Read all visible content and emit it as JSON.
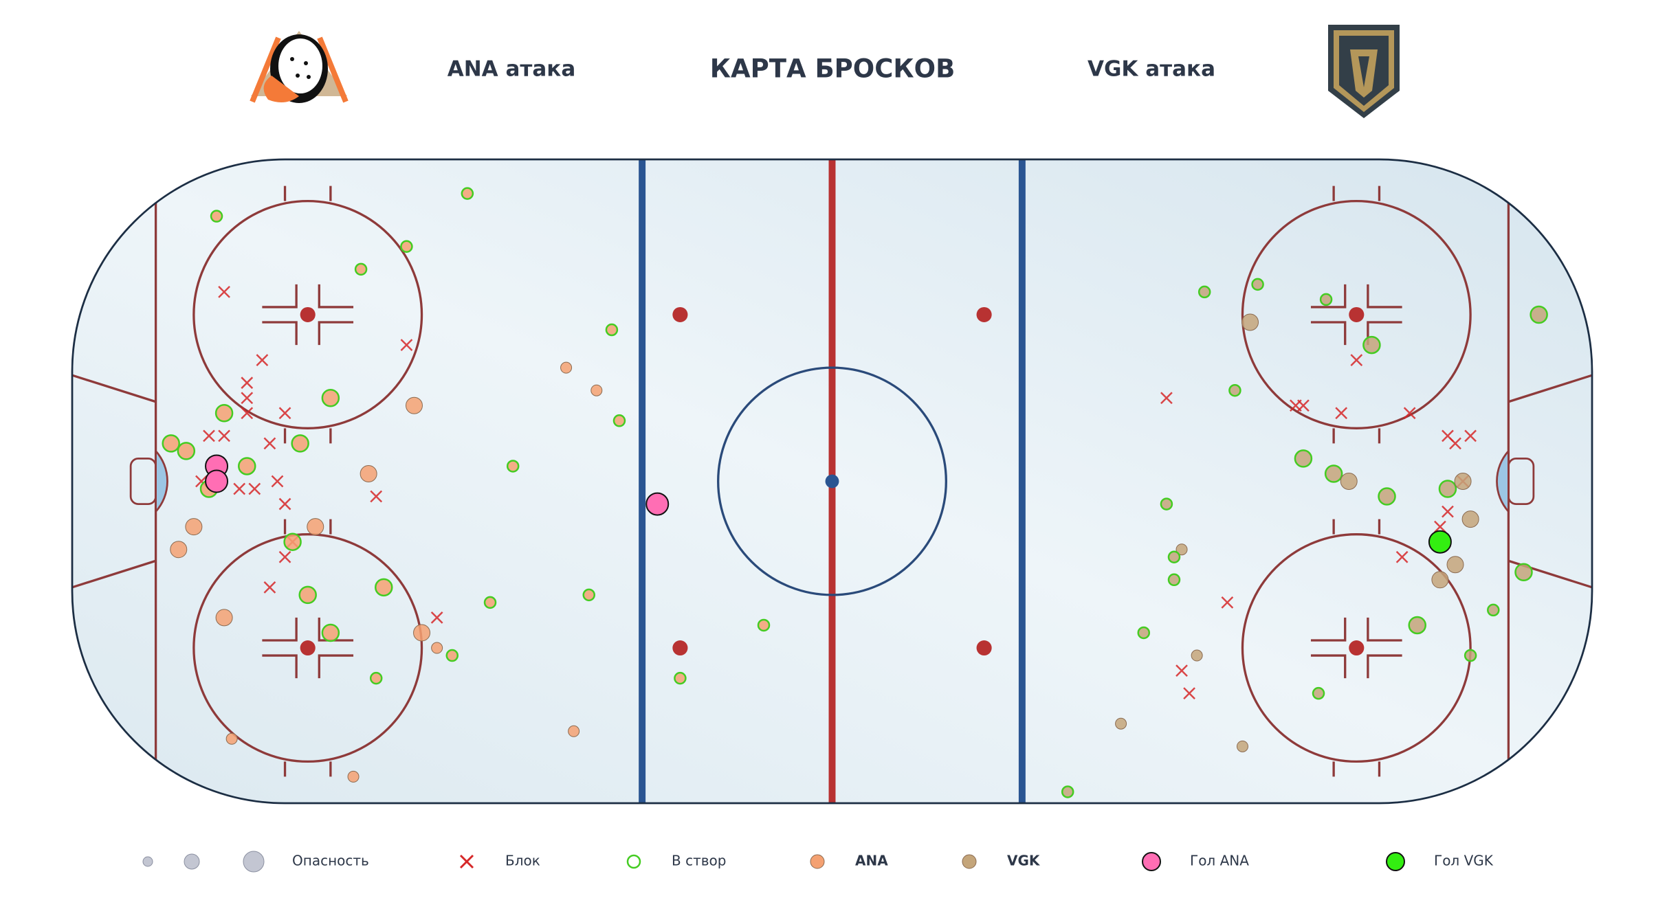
{
  "chart_data": {
    "type": "scatter",
    "title": "КАРТА БРОСКОВ",
    "left_label": "ANA атака",
    "right_label": "VGK атака",
    "xlim": [
      -100,
      100
    ],
    "ylim": [
      -42.5,
      42.5
    ],
    "size_label": "Опасность",
    "size_legend": [
      1,
      2,
      3
    ],
    "on_target_label": "В створ",
    "on_target_color": "#44cc22",
    "series": [
      {
        "name": "Блок",
        "marker": "x",
        "color": "#d62728",
        "x": [
          -80,
          -75,
          -56,
          -77,
          -77,
          -77,
          -72,
          -82,
          -80,
          -74,
          -83,
          -78,
          -76,
          -73,
          -72,
          -60,
          -71,
          -72,
          -74,
          -52,
          44,
          61,
          62,
          67,
          69,
          76,
          81,
          82,
          84,
          83,
          81,
          80,
          75,
          52,
          46,
          47
        ],
        "y": [
          25,
          16,
          18,
          13,
          11,
          9,
          9,
          6,
          6,
          5,
          0,
          -1,
          -1,
          0,
          -3,
          -2,
          -8,
          -10,
          -14,
          -18,
          11,
          10,
          10,
          9,
          16,
          9,
          6,
          5,
          6,
          0,
          -4,
          -6,
          -10,
          -16,
          -25,
          -28
        ]
      },
      {
        "name": "ANA",
        "marker": "circle",
        "color": "#f4a172",
        "x": [
          -81,
          -48,
          -62,
          -56,
          -29,
          -35,
          -31,
          -28,
          -66,
          -55,
          -80,
          -87,
          -85,
          -70,
          -77,
          -61,
          -42,
          -82,
          -84,
          -68,
          -86,
          -71,
          -59,
          -69,
          -80,
          -66,
          -54,
          -52,
          -50,
          -45,
          -32,
          -60,
          -79,
          -63,
          -34,
          -9,
          -20
        ],
        "y": [
          35,
          38,
          28,
          31,
          20,
          15,
          12,
          8,
          11,
          10,
          9,
          5,
          4,
          5,
          2,
          1,
          2,
          -1,
          -6,
          -6,
          -9,
          -8,
          -14,
          -15,
          -18,
          -20,
          -20,
          -22,
          -23,
          -16,
          -15,
          -26,
          -34,
          -39,
          -33,
          -19,
          -26
        ],
        "sizes": [
          1,
          1,
          1,
          1,
          1,
          1,
          1,
          1,
          2,
          2,
          2,
          2,
          2,
          2,
          2,
          2,
          1,
          2,
          2,
          2,
          2,
          2,
          2,
          2,
          2,
          2,
          2,
          1,
          1,
          1,
          1,
          1,
          1,
          1,
          1,
          1,
          1
        ],
        "on_target": [
          1,
          1,
          1,
          1,
          1,
          0,
          0,
          1,
          1,
          0,
          1,
          1,
          1,
          1,
          1,
          0,
          1,
          1,
          0,
          0,
          0,
          1,
          1,
          1,
          0,
          1,
          0,
          0,
          1,
          1,
          1,
          1,
          0,
          0,
          0,
          1,
          1
        ]
      },
      {
        "name": "VGK",
        "marker": "circle",
        "color": "#c4a57a",
        "x": [
          49,
          56,
          65,
          55,
          71,
          93,
          53,
          62,
          66,
          68,
          73,
          81,
          83,
          84,
          44,
          46,
          45,
          45,
          82,
          80,
          91,
          87,
          77,
          84,
          41,
          48,
          64,
          38,
          54,
          31
        ],
        "y": [
          25,
          26,
          24,
          21,
          18,
          22,
          12,
          3,
          1,
          0,
          -2,
          -1,
          0,
          -5,
          -3,
          -9,
          -10,
          -13,
          -11,
          -13,
          -12,
          -17,
          -19,
          -23,
          -20,
          -23,
          -28,
          -32,
          -35,
          -41
        ],
        "sizes": [
          1,
          1,
          1,
          2,
          2,
          2,
          1,
          2,
          2,
          2,
          2,
          2,
          2,
          2,
          1,
          1,
          1,
          1,
          2,
          2,
          2,
          1,
          2,
          1,
          1,
          1,
          1,
          1,
          1,
          1
        ],
        "on_target": [
          1,
          1,
          1,
          0,
          1,
          1,
          1,
          1,
          1,
          0,
          1,
          1,
          0,
          0,
          1,
          0,
          1,
          1,
          0,
          0,
          1,
          1,
          1,
          1,
          1,
          0,
          1,
          0,
          0,
          1
        ]
      },
      {
        "name": "Гол ANA",
        "marker": "goal",
        "color": "#ff6eb4",
        "x": [
          -81,
          -81,
          -23
        ],
        "y": [
          2,
          0,
          -3
        ],
        "sizes": [
          3,
          3,
          3
        ]
      },
      {
        "name": "Гол VGK",
        "marker": "goal",
        "color": "#33ee11",
        "x": [
          80
        ],
        "y": [
          -8
        ],
        "sizes": [
          3
        ]
      }
    ]
  }
}
